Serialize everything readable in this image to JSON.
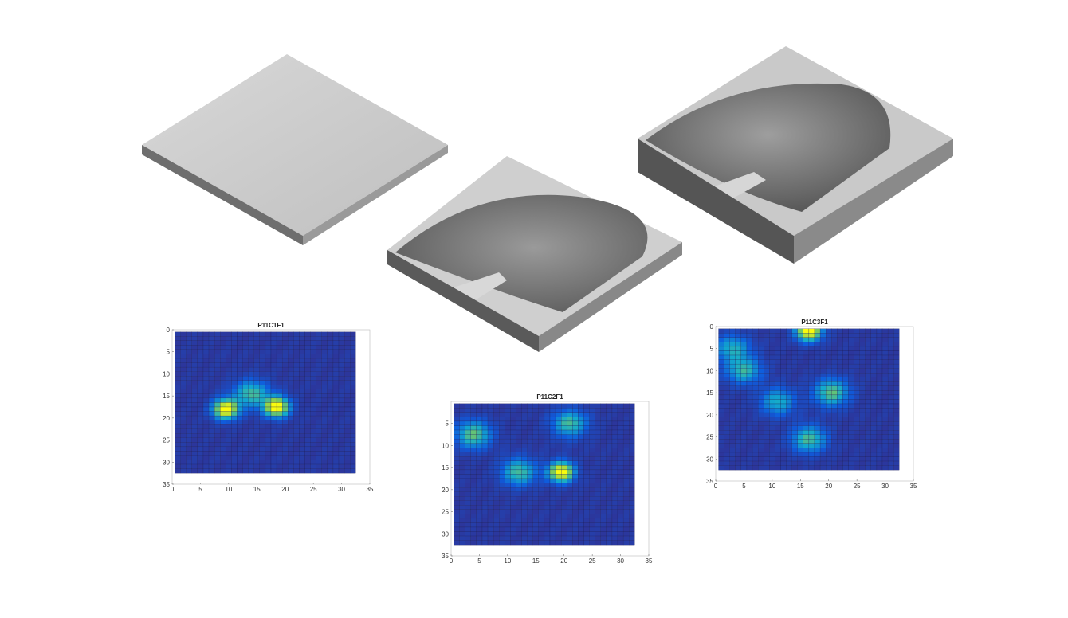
{
  "colors": {
    "page_bg": "#ffffff",
    "heatmap_low": "#352a87",
    "heatmap_mid": "#1fa0d1",
    "heatmap_high": "#f9fb0e"
  },
  "chart_data": [
    {
      "type": "heatmap",
      "title": "P11C1F1",
      "xlabel": "",
      "ylabel": "",
      "xlim": [
        0,
        35
      ],
      "ylim": [
        35,
        0
      ],
      "x_ticks": [
        "0",
        "5",
        "10",
        "15",
        "20",
        "25",
        "30",
        "35"
      ],
      "y_ticks": [
        "0",
        "5",
        "10",
        "15",
        "20",
        "25",
        "30",
        "35"
      ],
      "cells_x": [
        1,
        32
      ],
      "cells_y": [
        1,
        32
      ],
      "hotspots": [
        {
          "x": 9.5,
          "y": 18,
          "intensity": 1.0
        },
        {
          "x": 18.5,
          "y": 17.5,
          "intensity": 1.0
        },
        {
          "x": 14,
          "y": 14.5,
          "intensity": 0.55
        }
      ],
      "grid": true
    },
    {
      "type": "heatmap",
      "title": "P11C2F1",
      "xlabel": "",
      "ylabel": "",
      "xlim": [
        0,
        35
      ],
      "ylim": [
        35,
        0
      ],
      "x_ticks": [
        "0",
        "5",
        "10",
        "15",
        "20",
        "25",
        "30",
        "35"
      ],
      "y_ticks": [
        "5",
        "10",
        "15",
        "20",
        "25",
        "30",
        "35"
      ],
      "cells_x": [
        1,
        32
      ],
      "cells_y": [
        1,
        32
      ],
      "hotspots": [
        {
          "x": 19.5,
          "y": 16,
          "intensity": 1.0
        },
        {
          "x": 12,
          "y": 16,
          "intensity": 0.55
        },
        {
          "x": 4,
          "y": 7.5,
          "intensity": 0.6
        },
        {
          "x": 21,
          "y": 5,
          "intensity": 0.55
        }
      ],
      "grid": true
    },
    {
      "type": "heatmap",
      "title": "P11C3F1",
      "xlabel": "",
      "ylabel": "",
      "xlim": [
        0,
        35
      ],
      "ylim": [
        35,
        0
      ],
      "x_ticks": [
        "0",
        "5",
        "10",
        "15",
        "20",
        "25",
        "30",
        "35"
      ],
      "y_ticks": [
        "0",
        "5",
        "10",
        "15",
        "20",
        "25",
        "30",
        "35"
      ],
      "cells_x": [
        1,
        32
      ],
      "cells_y": [
        1,
        32
      ],
      "hotspots": [
        {
          "x": 16.5,
          "y": 1,
          "intensity": 1.0
        },
        {
          "x": 20.5,
          "y": 15,
          "intensity": 0.6
        },
        {
          "x": 11,
          "y": 17,
          "intensity": 0.45
        },
        {
          "x": 16.5,
          "y": 25.5,
          "intensity": 0.55
        },
        {
          "x": 5,
          "y": 10,
          "intensity": 0.5
        },
        {
          "x": 3,
          "y": 5,
          "intensity": 0.45
        }
      ],
      "grid": true
    }
  ]
}
